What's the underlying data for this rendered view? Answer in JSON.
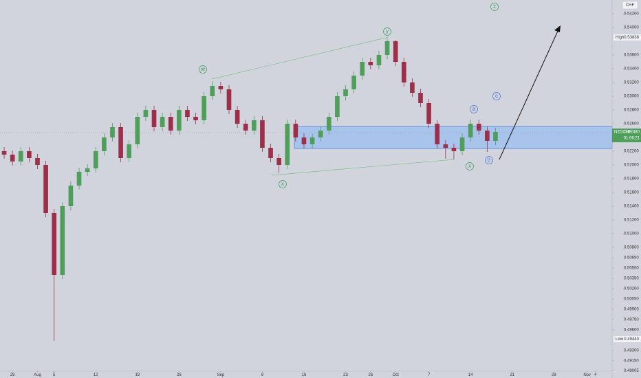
{
  "chart_data": {
    "type": "candlestick",
    "currency": "CHF",
    "x": [
      -1,
      0,
      1,
      2,
      3,
      4,
      5,
      6,
      7,
      8,
      9,
      10,
      11,
      12,
      13,
      14,
      15,
      16,
      17,
      18,
      19,
      20,
      21,
      22,
      23,
      24,
      25,
      26,
      27,
      28,
      29,
      30,
      31,
      32,
      33,
      34,
      35,
      36,
      37,
      38,
      39,
      40,
      41,
      42,
      43,
      44,
      45,
      46,
      47,
      48,
      49,
      50,
      51,
      52,
      53,
      54,
      55,
      56,
      57,
      58
    ],
    "open": [
      0.522,
      0.5215,
      0.5205,
      0.522,
      0.521,
      0.52,
      0.513,
      0.504,
      0.514,
      0.517,
      0.519,
      0.5195,
      0.522,
      0.524,
      0.5255,
      0.521,
      0.523,
      0.527,
      0.528,
      0.5255,
      0.527,
      0.525,
      0.528,
      0.527,
      0.5265,
      0.53,
      0.5315,
      0.531,
      0.528,
      0.526,
      0.525,
      0.5265,
      0.5225,
      0.521,
      0.52,
      0.526,
      0.524,
      0.523,
      0.524,
      0.525,
      0.527,
      0.53,
      0.531,
      0.533,
      0.535,
      0.5345,
      0.536,
      0.538,
      0.535,
      0.532,
      0.5305,
      0.529,
      0.526,
      0.523,
      0.5225,
      0.522,
      0.524,
      0.526,
      0.525,
      0.5235
    ],
    "high": [
      0.5226,
      0.5221,
      0.5226,
      0.5226,
      0.5216,
      0.5206,
      0.5136,
      0.5146,
      0.5176,
      0.5196,
      0.5201,
      0.5226,
      0.5246,
      0.5261,
      0.5261,
      0.5236,
      0.5276,
      0.5286,
      0.5286,
      0.5276,
      0.5276,
      0.5286,
      0.5286,
      0.5276,
      0.5306,
      0.5322,
      0.5321,
      0.5316,
      0.5286,
      0.5266,
      0.5271,
      0.5271,
      0.5231,
      0.5216,
      0.5266,
      0.5266,
      0.5246,
      0.5246,
      0.5256,
      0.5276,
      0.5306,
      0.5316,
      0.5336,
      0.5356,
      0.5356,
      0.5366,
      0.53838,
      0.5382,
      0.5356,
      0.5326,
      0.5311,
      0.5296,
      0.5266,
      0.5236,
      0.5231,
      0.5246,
      0.5266,
      0.5266,
      0.5256,
      0.5254
    ],
    "low": [
      0.5209,
      0.5199,
      0.5199,
      0.5204,
      0.5194,
      0.5124,
      0.4944,
      0.5034,
      0.5134,
      0.5164,
      0.5184,
      0.5189,
      0.5214,
      0.5234,
      0.5204,
      0.5204,
      0.5224,
      0.5264,
      0.5249,
      0.5249,
      0.5244,
      0.5244,
      0.5264,
      0.5259,
      0.5259,
      0.5294,
      0.5304,
      0.5274,
      0.5254,
      0.5244,
      0.5244,
      0.5219,
      0.5204,
      0.5188,
      0.5194,
      0.5234,
      0.5224,
      0.5224,
      0.5234,
      0.5244,
      0.5264,
      0.5294,
      0.5304,
      0.5324,
      0.5339,
      0.5339,
      0.5354,
      0.5344,
      0.5314,
      0.5299,
      0.5284,
      0.5254,
      0.5224,
      0.5209,
      0.5208,
      0.5214,
      0.5234,
      0.5244,
      0.5219,
      0.5229
    ],
    "close": [
      0.5215,
      0.5205,
      0.522,
      0.521,
      0.52,
      0.513,
      0.504,
      0.514,
      0.517,
      0.519,
      0.5195,
      0.522,
      0.524,
      0.5255,
      0.521,
      0.523,
      0.527,
      0.528,
      0.5255,
      0.527,
      0.525,
      0.528,
      0.527,
      0.5265,
      0.53,
      0.5315,
      0.531,
      0.528,
      0.526,
      0.525,
      0.5265,
      0.5225,
      0.521,
      0.52,
      0.526,
      0.524,
      0.523,
      0.524,
      0.525,
      0.527,
      0.53,
      0.531,
      0.533,
      0.535,
      0.5345,
      0.536,
      0.538,
      0.535,
      0.532,
      0.5305,
      0.529,
      0.526,
      0.523,
      0.5225,
      0.522,
      0.524,
      0.526,
      0.525,
      0.5235,
      0.5248
    ],
    "up_color": "#4f9e5c",
    "down_color": "#9c2f4a",
    "xlim": [
      -1.5,
      72
    ],
    "xticks": [
      {
        "value": 0,
        "label": "29"
      },
      {
        "value": 3,
        "label": "Aug"
      },
      {
        "value": 5,
        "label": "5"
      },
      {
        "value": 10,
        "label": "12"
      },
      {
        "value": 15,
        "label": "19"
      },
      {
        "value": 20,
        "label": "26"
      },
      {
        "value": 25,
        "label": "Sep"
      },
      {
        "value": 30,
        "label": "9"
      },
      {
        "value": 35,
        "label": "16"
      },
      {
        "value": 40,
        "label": "23"
      },
      {
        "value": 43,
        "label": "26"
      },
      {
        "value": 46,
        "label": "Oct"
      },
      {
        "value": 50,
        "label": "7"
      },
      {
        "value": 55,
        "label": "14"
      },
      {
        "value": 60,
        "label": "21"
      },
      {
        "value": 65,
        "label": "28"
      },
      {
        "value": 69,
        "label": "Nov"
      },
      {
        "value": 70,
        "label": "4"
      }
    ],
    "ylim": [
      0.49,
      0.544
    ],
    "yticks": [
      {
        "value": 0.542,
        "label": "0.54200"
      },
      {
        "value": 0.54,
        "label": "0.54000"
      },
      {
        "value": 0.536,
        "label": "0.53600"
      },
      {
        "value": 0.534,
        "label": "0.53400"
      },
      {
        "value": 0.532,
        "label": "0.53200"
      },
      {
        "value": 0.53,
        "label": "0.53000"
      },
      {
        "value": 0.528,
        "label": "0.52800"
      },
      {
        "value": 0.526,
        "label": "0.52600"
      },
      {
        "value": 0.522,
        "label": "0.52200"
      },
      {
        "value": 0.52,
        "label": "0.52000"
      },
      {
        "value": 0.518,
        "label": "0.51800"
      },
      {
        "value": 0.516,
        "label": "0.51600"
      },
      {
        "value": 0.514,
        "label": "0.51400"
      },
      {
        "value": 0.512,
        "label": "0.51200"
      },
      {
        "value": 0.51,
        "label": "0.51000"
      },
      {
        "value": 0.508,
        "label": "0.50800"
      },
      {
        "value": 0.5065,
        "label": "0.50650"
      },
      {
        "value": 0.505,
        "label": "0.50500"
      },
      {
        "value": 0.5035,
        "label": "0.50350"
      },
      {
        "value": 0.502,
        "label": "0.50200"
      },
      {
        "value": 0.5005,
        "label": "0.50050"
      },
      {
        "value": 0.499,
        "label": "0.49900"
      },
      {
        "value": 0.4975,
        "label": "0.49750"
      },
      {
        "value": 0.496,
        "label": "0.49600"
      },
      {
        "value": 0.493,
        "label": "0.49300"
      },
      {
        "value": 0.4915,
        "label": "0.49150"
      },
      {
        "value": 0.49005,
        "label": "0.49005"
      }
    ],
    "high_marker": {
      "label": "High",
      "price": "0.53838"
    },
    "low_marker": {
      "label": "Low",
      "price": "0.49440"
    },
    "current": {
      "symbol": "NZDCHF",
      "price": "0.52480",
      "countdown": "01:06:21"
    },
    "annotations": [
      "w",
      "x",
      "y",
      "x",
      "z",
      "a",
      "b",
      "c"
    ]
  }
}
